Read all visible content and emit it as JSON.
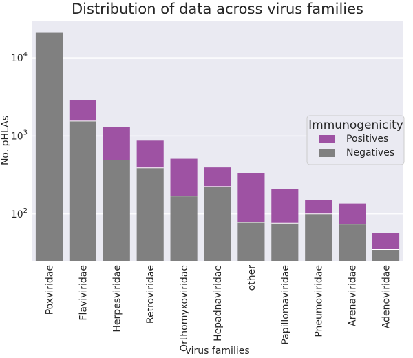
{
  "chart_data": {
    "type": "bar",
    "stacked": true,
    "title": "Distribution of data across virus families",
    "xlabel": "virus families",
    "ylabel": "No. pHLAs",
    "yscale": "log",
    "ylim": [
      25,
      30000
    ],
    "yticks": [
      100,
      1000,
      10000
    ],
    "ytick_labels": [
      {
        "base": "10",
        "exp": "2"
      },
      {
        "base": "10",
        "exp": "3"
      },
      {
        "base": "10",
        "exp": "4"
      }
    ],
    "categories": [
      "Poxviridae",
      "Flaviviridae",
      "Herpesviridae",
      "Retroviridae",
      "Orthomyxoviridae",
      "Hepadnaviridae",
      "other",
      "Papillomaviridae",
      "Pneumoviridae",
      "Arenaviridae",
      "Adenoviridae"
    ],
    "series": [
      {
        "name": "Negatives",
        "color": "#808080",
        "values": [
          21000,
          1550,
          490,
          390,
          170,
          225,
          78,
          76,
          100,
          74,
          35
        ]
      },
      {
        "name": "Positives",
        "color": "#9e52a3",
        "values": [
          0,
          1350,
          810,
          480,
          340,
          170,
          252,
          134,
          50,
          62,
          22
        ]
      }
    ],
    "legend": {
      "title": "Immunogenicity",
      "position": "right",
      "entries": [
        {
          "label": "Positives",
          "color": "#9e52a3"
        },
        {
          "label": "Negatives",
          "color": "#808080"
        }
      ]
    },
    "grid": true,
    "background": "#eaeaf2"
  }
}
